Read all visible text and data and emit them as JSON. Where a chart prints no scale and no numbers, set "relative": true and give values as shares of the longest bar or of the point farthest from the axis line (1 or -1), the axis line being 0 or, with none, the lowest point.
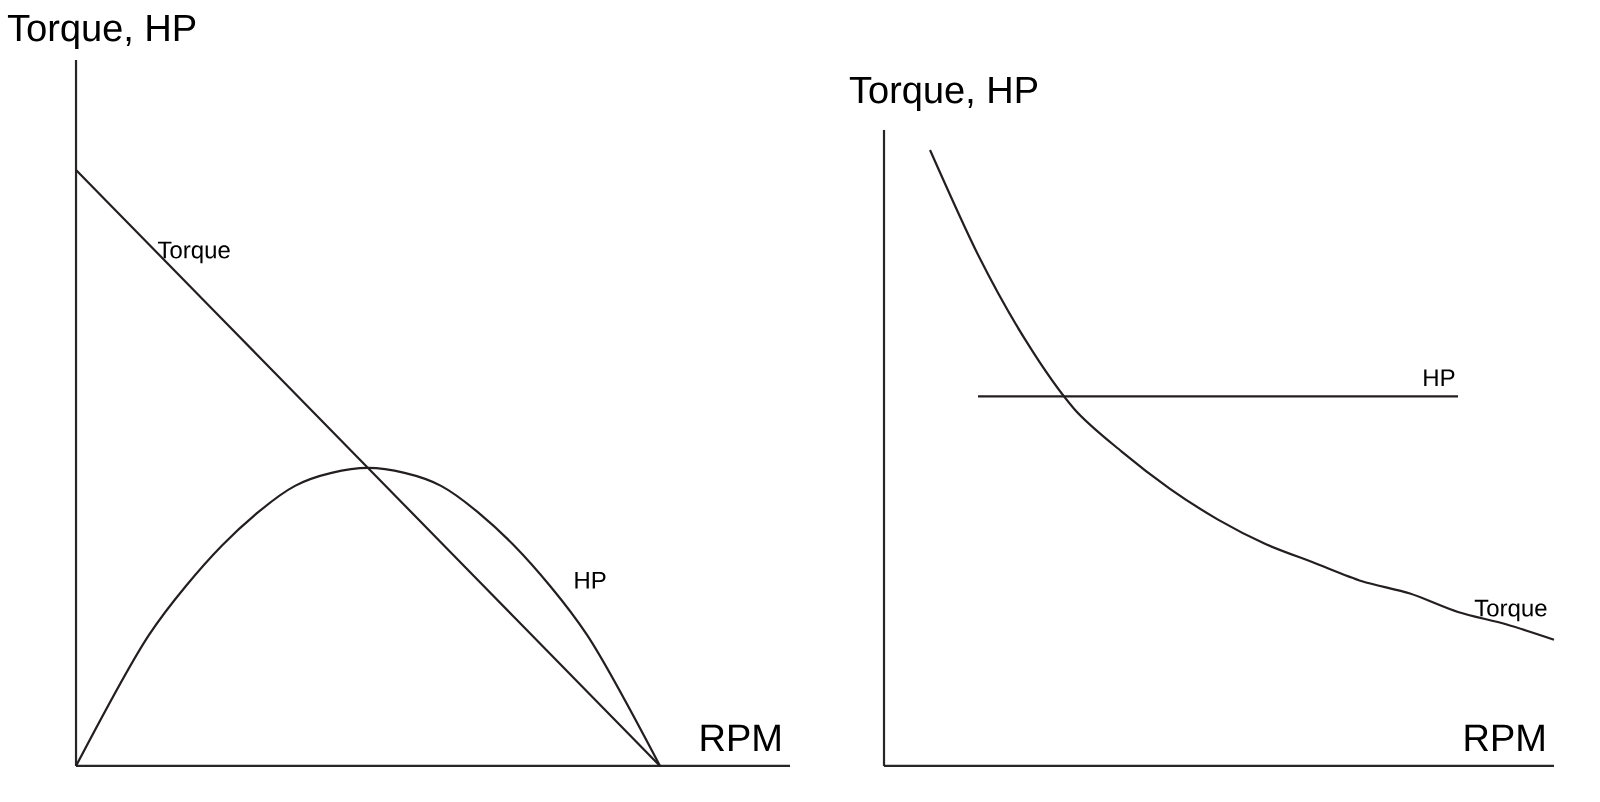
{
  "chart_data": [
    {
      "type": "line",
      "relative": true,
      "xlabel": "RPM",
      "ylabel": "Torque, HP",
      "categories": [
        null,
        null,
        null,
        null,
        null,
        null,
        null,
        null,
        null
      ],
      "series": [
        {
          "name": "Torque",
          "color": "#231f20",
          "values": [
            1.0,
            0.875,
            0.75,
            0.625,
            0.5,
            0.375,
            0.25,
            0.125,
            0.0
          ]
        },
        {
          "name": "HP",
          "color": "#231f20",
          "values": [
            0.0,
            0.22,
            0.37,
            0.47,
            0.5,
            0.47,
            0.37,
            0.22,
            0.0
          ]
        }
      ]
    },
    {
      "type": "line",
      "relative": true,
      "xlabel": "RPM",
      "ylabel": "Torque, HP",
      "categories": [
        null,
        null,
        null,
        null,
        null,
        null,
        null,
        null,
        null,
        null,
        null,
        null,
        null,
        null
      ],
      "series": [
        {
          "name": "HP",
          "color": "#231f20",
          "values": [
            null,
            0.6,
            0.6,
            0.6,
            0.6,
            0.6,
            0.6,
            0.6,
            0.6,
            0.6,
            0.6,
            0.6,
            null,
            null
          ]
        },
        {
          "name": "Torque",
          "color": "#231f20",
          "values": [
            1.0,
            0.83,
            0.69,
            0.58,
            0.51,
            0.45,
            0.4,
            0.36,
            0.33,
            0.3,
            0.28,
            0.25,
            0.23,
            0.205
          ]
        }
      ]
    }
  ]
}
